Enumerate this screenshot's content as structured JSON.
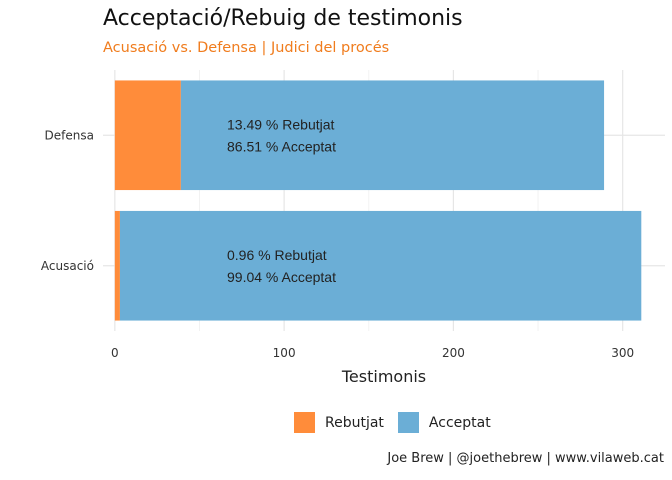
{
  "title": "Acceptació/Rebuig de testimonis",
  "subtitle": "Acusació vs. Defensa | Judici del procés",
  "caption": "Joe Brew | @joethebrew | www.vilaweb.cat",
  "colors": {
    "rebutjat": "#ff8c3a",
    "acceptat": "#6baed6"
  },
  "chart_data": {
    "type": "bar",
    "orientation": "horizontal",
    "stacked": true,
    "categories": [
      "Defensa",
      "Acusació"
    ],
    "series": [
      {
        "name": "Rebutjat",
        "values": [
          39,
          3
        ]
      },
      {
        "name": "Acceptat",
        "values": [
          250,
          308
        ]
      }
    ],
    "bar_labels": [
      [
        "13.49 % Rebutjat",
        "86.51 % Acceptat"
      ],
      [
        "0.96 % Rebutjat",
        "99.04 % Acceptat"
      ]
    ],
    "xlabel": "Testimonis",
    "ylabel": "",
    "xticks": [
      0,
      100,
      200,
      300
    ],
    "xlim": [
      -7,
      325
    ],
    "grid": true,
    "legend_position": "bottom"
  }
}
